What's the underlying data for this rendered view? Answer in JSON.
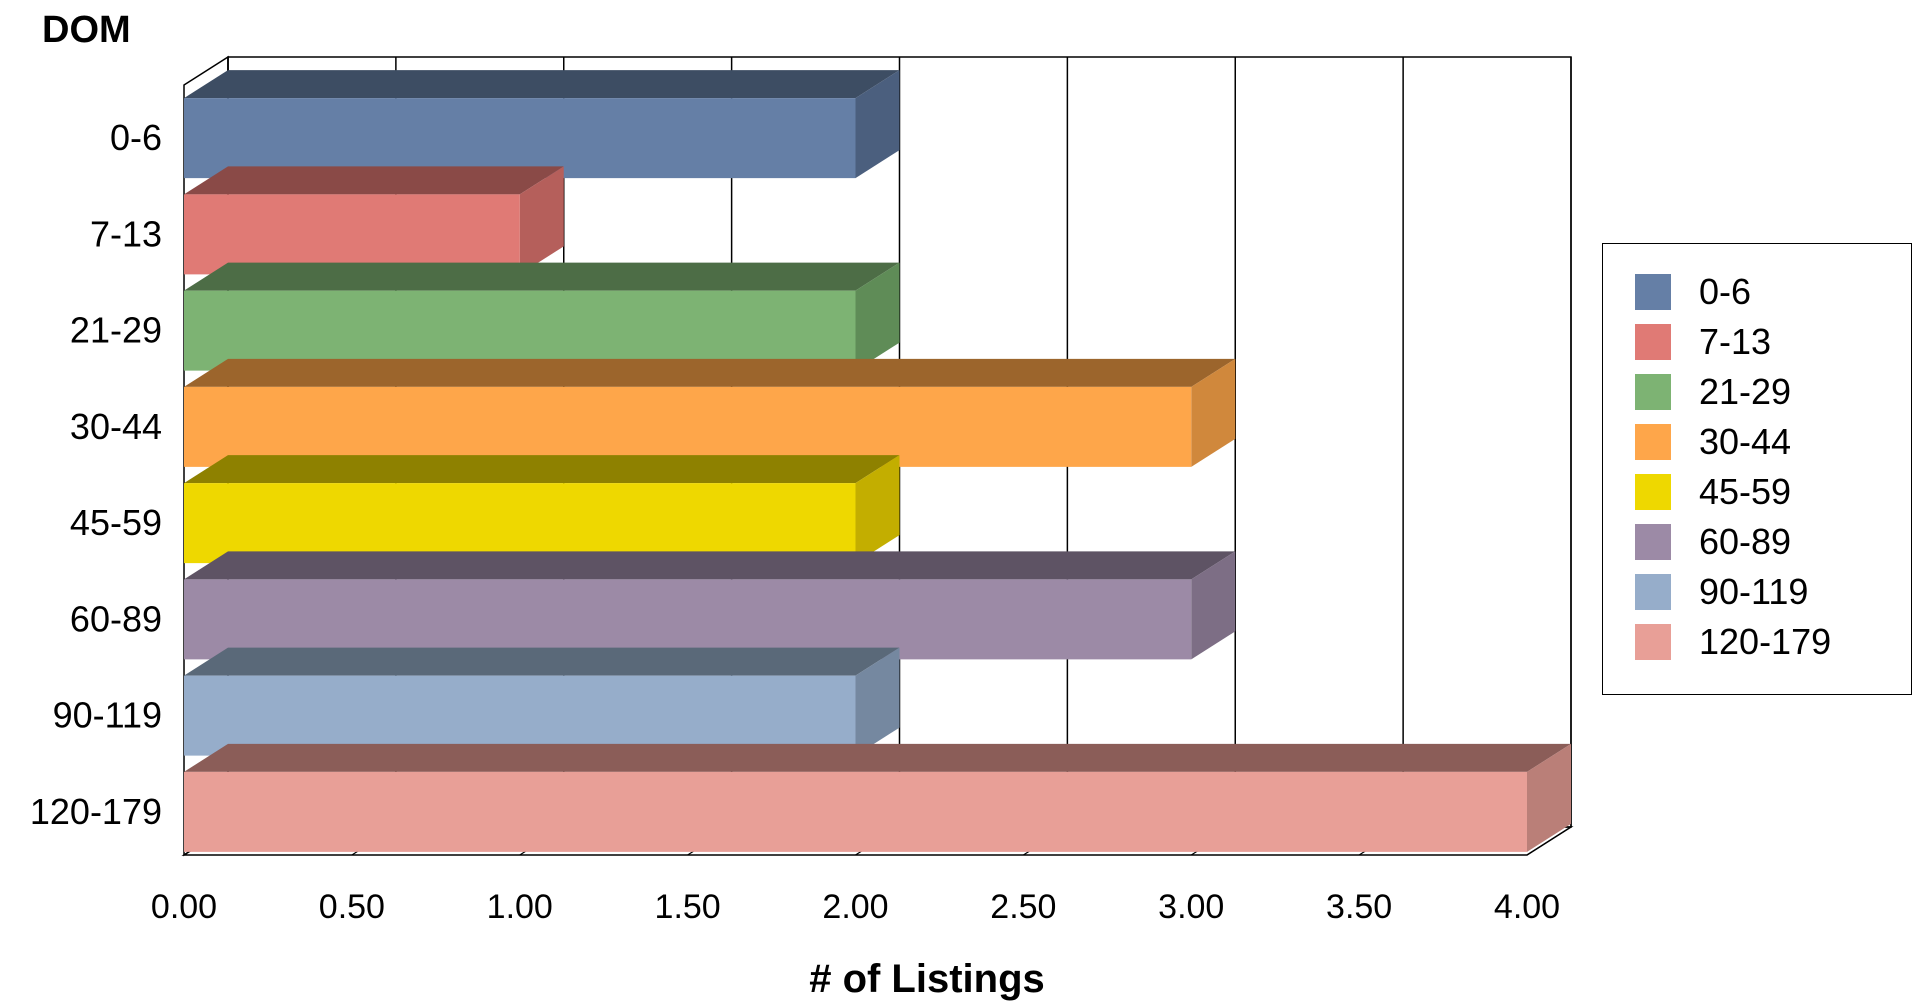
{
  "chart_data": {
    "type": "bar",
    "orientation": "horizontal",
    "style": "3d",
    "ylabel": "DOM",
    "xlabel": "# of Listings",
    "categories": [
      "0-6",
      "7-13",
      "21-29",
      "30-44",
      "45-59",
      "60-89",
      "90-119",
      "120-179"
    ],
    "values": [
      2,
      1,
      2,
      3,
      2,
      3,
      2,
      4
    ],
    "xlim": [
      0,
      4
    ],
    "x_ticks": [
      "0.00",
      "0.50",
      "1.00",
      "1.50",
      "2.00",
      "2.50",
      "3.00",
      "3.50",
      "4.00"
    ],
    "grid": true,
    "legend_position": "right",
    "legend": [
      "0-6",
      "7-13",
      "21-29",
      "30-44",
      "45-59",
      "60-89",
      "90-119",
      "120-179"
    ],
    "colors": {
      "0-6": {
        "front": "#657fa6",
        "top": "#3d4d63",
        "side": "#4b5f7e"
      },
      "7-13": {
        "front": "#e07a75",
        "top": "#8a4a47",
        "side": "#b55f5b"
      },
      "21-29": {
        "front": "#7db373",
        "top": "#4d6d46",
        "side": "#5f8c57"
      },
      "30-44": {
        "front": "#fea64a",
        "top": "#9c652c",
        "side": "#d0883c"
      },
      "45-59": {
        "front": "#eed800",
        "top": "#8e8100",
        "side": "#c3ae00"
      },
      "60-89": {
        "front": "#9c8aa6",
        "top": "#5e5364",
        "side": "#7d6e85"
      },
      "90-119": {
        "front": "#96adca",
        "top": "#5a6979",
        "side": "#7588a0"
      },
      "120-179": {
        "front": "#e89f97",
        "top": "#8b5d58",
        "side": "#ba7f78"
      }
    }
  }
}
